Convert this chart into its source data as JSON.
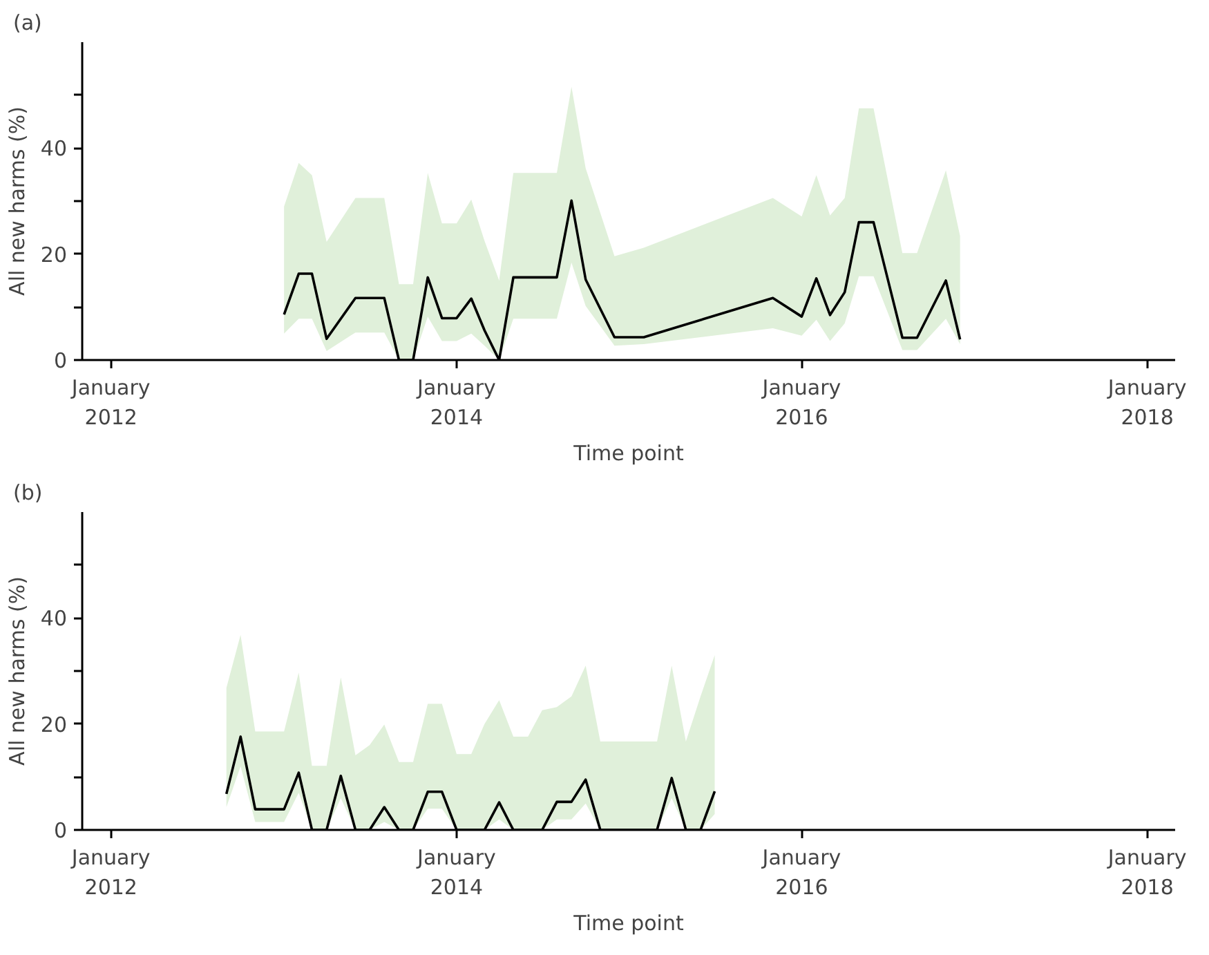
{
  "chart_data": [
    {
      "type": "line",
      "title": "(a)",
      "xlabel": "Time point",
      "ylabel": "All new harms (%)",
      "grid": false,
      "marker": "none",
      "line_style": "solid",
      "xlim": [
        "2011-11",
        "2018-03"
      ],
      "ylim": [
        0,
        60
      ],
      "xticks": [
        {
          "value": "2012-01",
          "label": "January\n2012"
        },
        {
          "value": "2014-01",
          "label": "January\n2014"
        },
        {
          "value": "2016-01",
          "label": "January\n2016"
        },
        {
          "value": "2018-01",
          "label": "January\n2018"
        }
      ],
      "yticks": [
        0,
        {
          "value": 10,
          "label": null
        },
        20,
        {
          "value": 30,
          "label": null
        },
        40,
        {
          "value": 50,
          "label": null
        }
      ],
      "x": [
        "2013-01",
        "2013-02",
        "2013-03",
        "2013-04",
        "2013-06",
        "2013-08",
        "2013-09",
        "2013-10",
        "2013-11",
        "2013-12",
        "2014-01",
        "2014-02",
        "2014-03",
        "2014-04",
        "2014-05",
        "2014-08",
        "2014-09",
        "2014-10",
        "2014-12",
        "2015-02",
        "2015-11",
        "2016-01",
        "2016-02",
        "2016-03",
        "2016-04",
        "2016-05",
        "2016-06",
        "2016-08",
        "2016-09",
        "2016-11",
        "2016-12"
      ],
      "series": [
        {
          "color": "#000000",
          "values": [
            8.6,
            16.3,
            16.3,
            4.0,
            11.7,
            11.7,
            0,
            0,
            15.6,
            7.9,
            7.9,
            11.6,
            5.6,
            0,
            15.6,
            15.6,
            30.1,
            15.2,
            4.3,
            4.3,
            11.7,
            8.2,
            15.4,
            8.5,
            12.8,
            26,
            26,
            4.2,
            4.2,
            15,
            3.9
          ],
          "lower": [
            5,
            7.8,
            7.8,
            1.7,
            5.2,
            5.2,
            0,
            0,
            8.2,
            3.6,
            3.6,
            5,
            2.7,
            0,
            7.8,
            7.8,
            18.4,
            10.2,
            2.7,
            3,
            6,
            4.6,
            7.6,
            3.6,
            6.9,
            15.8,
            15.8,
            1.9,
            1.9,
            7.8,
            3
          ],
          "upper": [
            29,
            37.2,
            34.9,
            22.3,
            30.6,
            30.6,
            14.3,
            14.3,
            35.3,
            25.8,
            25.8,
            30.3,
            22.5,
            15,
            35.3,
            35.3,
            51.6,
            36.2,
            19.6,
            21.2,
            30.6,
            27.1,
            34.9,
            27.3,
            30.6,
            47.5,
            47.5,
            20.2,
            20.2,
            35.8,
            23.4
          ]
        }
      ]
    },
    {
      "type": "line",
      "title": "(b)",
      "xlabel": "Time point",
      "ylabel": "All new harms (%)",
      "grid": false,
      "marker": "none",
      "line_style": "solid",
      "xlim": [
        "2011-11",
        "2018-03"
      ],
      "ylim": [
        0,
        60
      ],
      "xticks": [
        {
          "value": "2012-01",
          "label": "January\n2012"
        },
        {
          "value": "2014-01",
          "label": "January\n2014"
        },
        {
          "value": "2016-01",
          "label": "January\n2016"
        },
        {
          "value": "2018-01",
          "label": "January\n2018"
        }
      ],
      "yticks": [
        0,
        {
          "value": 10,
          "label": null
        },
        20,
        {
          "value": 30,
          "label": null
        },
        40,
        {
          "value": 50,
          "label": null
        }
      ],
      "x": [
        "2012-09",
        "2012-10",
        "2012-11",
        "2012-12",
        "2013-01",
        "2013-02",
        "2013-03",
        "2013-04",
        "2013-05",
        "2013-06",
        "2013-07",
        "2013-08",
        "2013-09",
        "2013-10",
        "2013-11",
        "2013-12",
        "2014-01",
        "2014-02",
        "2014-03",
        "2014-04",
        "2014-05",
        "2014-06",
        "2014-07",
        "2014-08",
        "2014-09",
        "2014-10",
        "2014-11",
        "2014-12",
        "2015-01",
        "2015-02",
        "2015-03",
        "2015-04",
        "2015-05",
        "2015-06",
        "2015-07"
      ],
      "series": [
        {
          "color": "#000000",
          "values": [
            6.8,
            17.6,
            3.9,
            3.9,
            3.9,
            10.8,
            0,
            0,
            10.2,
            0,
            0,
            4.3,
            0,
            0,
            7.2,
            7.2,
            0,
            0,
            0,
            5.2,
            0,
            0,
            0,
            5.3,
            5.3,
            9.5,
            0,
            0,
            0,
            0,
            0,
            9.8,
            0,
            0,
            7.3
          ],
          "lower": [
            4.3,
            12,
            1.5,
            1.5,
            1.5,
            7,
            0,
            0,
            6,
            0,
            0,
            1.5,
            0,
            0,
            4,
            4,
            0,
            0,
            0,
            2,
            0,
            0,
            0,
            2,
            2,
            5,
            0,
            0,
            0,
            0,
            0,
            6,
            0,
            0,
            3
          ],
          "upper": [
            26.8,
            36.8,
            18.6,
            18.6,
            18.6,
            29.7,
            12.1,
            12.1,
            28.8,
            14.1,
            16,
            19.9,
            12.8,
            12.8,
            23.8,
            23.8,
            14.3,
            14.3,
            20,
            24.5,
            17.6,
            17.6,
            22.6,
            23.2,
            25.2,
            31,
            16.7,
            16.7,
            16.7,
            16.7,
            16.7,
            31,
            16.7,
            25.2,
            33
          ]
        }
      ]
    }
  ]
}
